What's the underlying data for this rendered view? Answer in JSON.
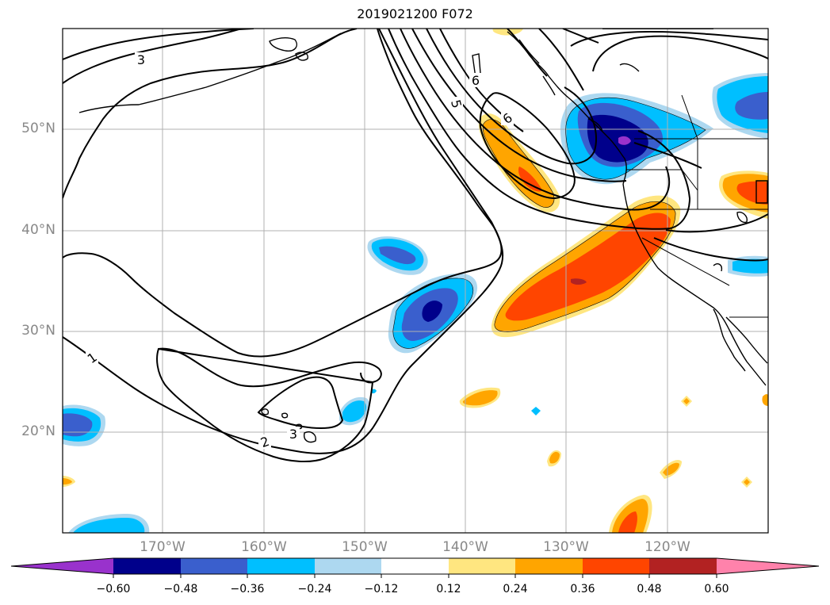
{
  "title": "2019021200 F072",
  "lat_labels": [
    "50°N",
    "40°N",
    "30°N",
    "20°N"
  ],
  "lon_labels": [
    "170°W",
    "160°W",
    "150°W",
    "140°W",
    "130°W",
    "120°W"
  ],
  "colorbar": {
    "ticks": [
      "−0.60",
      "−0.48",
      "−0.36",
      "−0.24",
      "−0.12",
      "0.12",
      "0.24",
      "0.36",
      "0.48",
      "0.60"
    ],
    "colors": [
      "#9932CC",
      "#00008B",
      "#3A5FCD",
      "#00BFFF",
      "#ADD8F0",
      "#FFFFFF",
      "#FFE680",
      "#FFA500",
      "#FF4500",
      "#B22222",
      "#FF82AB"
    ]
  },
  "contour_labels": [
    "3",
    "6",
    "5",
    "6",
    "1",
    "2",
    "3"
  ],
  "colors": {
    "grid": "#b0b0b0",
    "contour": "#000000",
    "tick_label": "#888888"
  }
}
